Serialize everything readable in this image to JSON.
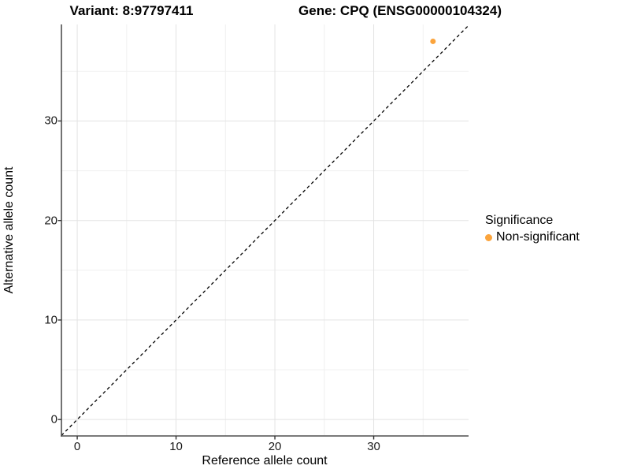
{
  "titles": {
    "variant": "Variant: 8:97797411",
    "gene": "Gene: CPQ (ENSG00000104324)"
  },
  "chart_data": {
    "type": "scatter",
    "xlabel": "Reference allele count",
    "ylabel": "Alternative allele count",
    "xlim": [
      -1.6,
      39.6
    ],
    "ylim": [
      -1.65,
      39.7
    ],
    "xticks": [
      0,
      10,
      20,
      30
    ],
    "yticks": [
      0,
      10,
      20,
      30
    ],
    "xticks_minor": [
      5,
      15,
      25,
      35
    ],
    "yticks_minor": [
      5,
      15,
      25,
      35
    ],
    "grid": "on",
    "identity_line": {
      "type": "dashed",
      "from": -1.6,
      "to": 39.6,
      "color": "#000000"
    },
    "series": [
      {
        "name": "Non-significant",
        "color": "#FBA43C",
        "points": [
          {
            "x": 36,
            "y": 38
          }
        ]
      }
    ],
    "legend": {
      "title": "Significance",
      "position": "right",
      "entries": [
        {
          "label": "Non-significant",
          "color": "#FBA43C"
        }
      ]
    }
  },
  "colors": {
    "axis_line": "#4e4e4e",
    "tick_mark": "#333333",
    "grid_major": "#e3e3e3",
    "grid_minor": "#f0f0f0",
    "point": "#FBA43C"
  }
}
